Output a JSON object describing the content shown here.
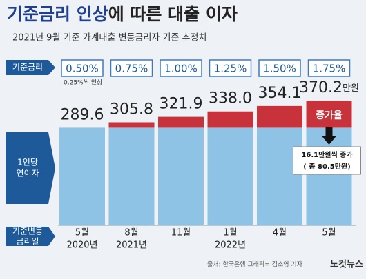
{
  "chart_data": {
    "type": "bar",
    "title_emphasis": "기준금리 인상",
    "title_rest": "에 따른 대출 이자",
    "subtitle": "2021년 9월 기준 가계대출 변동금리자 기준 추정치",
    "row_labels": {
      "rate": "기준금리",
      "interest": [
        "1인당",
        "연이자"
      ],
      "date": [
        "기준변동",
        "금리일"
      ]
    },
    "rates": [
      "0.50%",
      "0.75%",
      "1.00%",
      "1.25%",
      "1.50%",
      "1.75%"
    ],
    "rate_note": "0.25%씩 인상",
    "categories": [
      "5월",
      "8월",
      "11월",
      "1월",
      "4월",
      "5월"
    ],
    "years": [
      "2020년",
      "2021년",
      null,
      "2022년",
      null,
      null
    ],
    "values": [
      289.6,
      305.8,
      321.9,
      338.0,
      354.1,
      370.2
    ],
    "value_labels": [
      "289.6",
      "305.8",
      "321.9",
      "338.0",
      "354.1",
      "370.2"
    ],
    "unit": "만원",
    "base_color": "#8ec3e6",
    "increase_color": "#c8323a",
    "increase_label": "증가율",
    "increase_note": [
      "16.1만원씩 증가",
      "( 총 80.5만원)"
    ],
    "source": "출처: 한국은행   그래픽= 김소영 기자",
    "logo": "노컷뉴스"
  }
}
